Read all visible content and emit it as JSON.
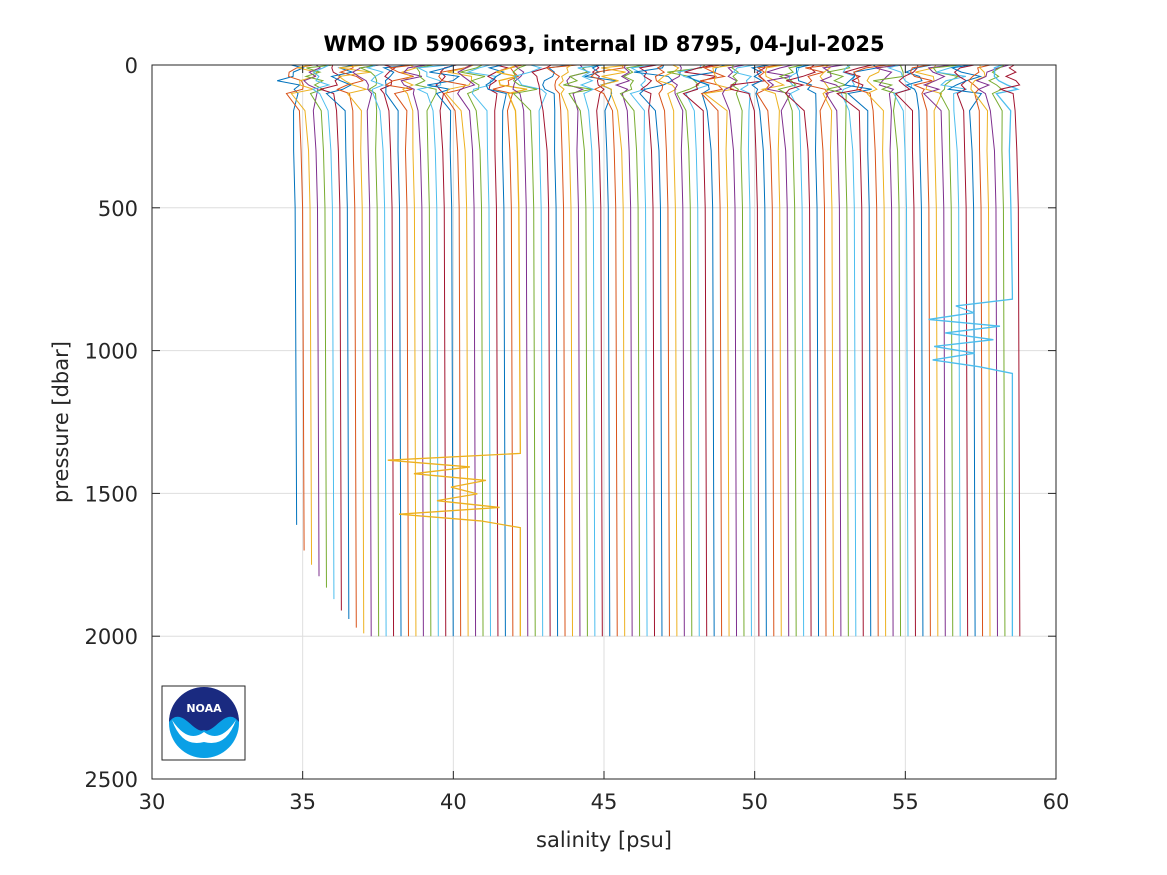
{
  "chart_data": {
    "type": "line",
    "title": "WMO ID 5906693, internal ID 8795, 04-Jul-2025",
    "xlabel": "salinity [psu]",
    "ylabel": "pressure [dbar]",
    "xlim": [
      30,
      60
    ],
    "ylim": [
      0,
      2500
    ],
    "y_reversed": true,
    "grid": true,
    "xticks": [
      "30",
      "35",
      "40",
      "45",
      "50",
      "55",
      "60"
    ],
    "yticks": [
      "0",
      "500",
      "1000",
      "1500",
      "2000",
      "2500"
    ],
    "profiles": {
      "count": 98,
      "description_of_encoding": "profiles offset horizontally; each profile's deep salinity value listed",
      "deep_salinity_start": 34.8,
      "deep_salinity_end": 58.8,
      "max_pressures": [
        1610,
        1700,
        1750,
        1790,
        1830,
        1870,
        1910,
        1940,
        1970,
        1990,
        2000,
        2000,
        2000,
        2000,
        2000,
        2000,
        2000,
        2000,
        2000,
        2000
      ]
    },
    "anomalies": [
      {
        "profile_salinity": 42.3,
        "pressure_range": [
          1360,
          1620
        ],
        "min_salinity": 37.7
      },
      {
        "profile_salinity": 58.5,
        "pressure_range": [
          820,
          1080
        ],
        "min_salinity": 55.0
      }
    ],
    "series_colors": [
      "#0072bd",
      "#d95319",
      "#edb120",
      "#7e2f8e",
      "#77ac30",
      "#4dbeee",
      "#a2142f"
    ],
    "logo": "NOAA"
  }
}
